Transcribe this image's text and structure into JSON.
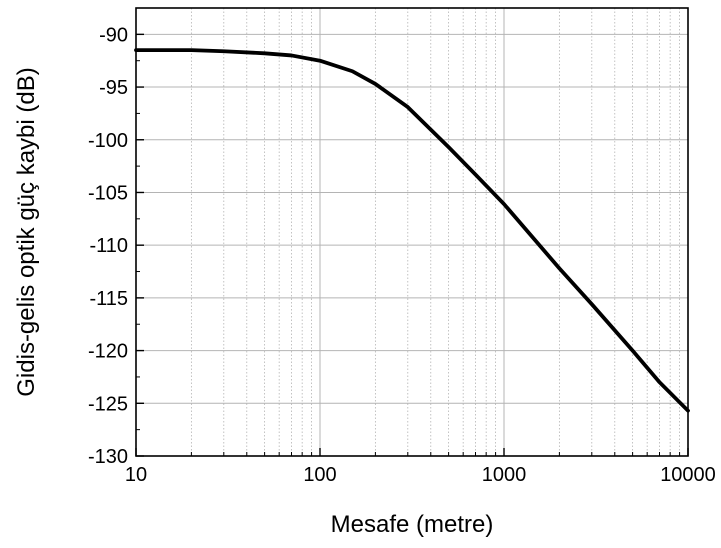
{
  "chart_data": {
    "type": "line",
    "title": "",
    "xlabel": "Mesafe (metre)",
    "ylabel": "Gidis-gelis optik güç kaybi (dB)",
    "xscale": "log",
    "xlim": [
      10,
      10000
    ],
    "ylim": [
      -130,
      -87.5
    ],
    "x_ticks": [
      10,
      100,
      1000,
      10000
    ],
    "x_tick_labels": [
      "10",
      "100",
      "1000",
      "10000"
    ],
    "y_ticks": [
      -90,
      -95,
      -100,
      -105,
      -110,
      -115,
      -120,
      -125,
      -130
    ],
    "y_tick_labels": [
      "-90",
      "-95",
      "-100",
      "-105",
      "-110",
      "-115",
      "-120",
      "-125",
      "-130"
    ],
    "grid": true,
    "line_color": "#000000",
    "grid_color": "#b4b4b4",
    "series": [
      {
        "x": [
          10,
          20,
          30,
          50,
          70,
          100,
          150,
          200,
          300,
          500,
          700,
          1000,
          2000,
          3000,
          5000,
          7000,
          10000
        ],
        "y": [
          -91.5,
          -91.5,
          -91.6,
          -91.8,
          -92.0,
          -92.5,
          -93.5,
          -94.7,
          -96.9,
          -100.7,
          -103.3,
          -106.1,
          -112.2,
          -115.6,
          -120.0,
          -123.0,
          -125.7
        ]
      }
    ]
  }
}
